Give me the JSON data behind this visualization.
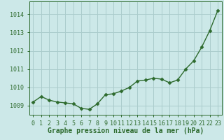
{
  "x": [
    0,
    1,
    2,
    3,
    4,
    5,
    6,
    7,
    8,
    9,
    10,
    11,
    12,
    13,
    14,
    15,
    16,
    17,
    18,
    19,
    20,
    21,
    22,
    23
  ],
  "y": [
    1009.2,
    1009.5,
    1009.3,
    1009.2,
    1009.15,
    1009.1,
    1008.85,
    1008.8,
    1009.1,
    1009.6,
    1009.65,
    1009.8,
    1010.0,
    1010.35,
    1010.4,
    1010.5,
    1010.45,
    1010.25,
    1010.4,
    1011.0,
    1011.45,
    1012.2,
    1013.1,
    1014.2
  ],
  "line_color": "#2d6a2d",
  "marker": "D",
  "markersize": 2.5,
  "linewidth": 1.0,
  "background_color": "#cce8e8",
  "grid_color": "#aacccc",
  "ylabel_ticks": [
    1009,
    1010,
    1011,
    1012,
    1013,
    1014
  ],
  "ylim": [
    1008.5,
    1014.7
  ],
  "xlim": [
    -0.5,
    23.5
  ],
  "xlabel": "Graphe pression niveau de la mer (hPa)",
  "xlabel_fontsize": 7,
  "tick_fontsize": 6,
  "axis_color": "#2d6a2d"
}
